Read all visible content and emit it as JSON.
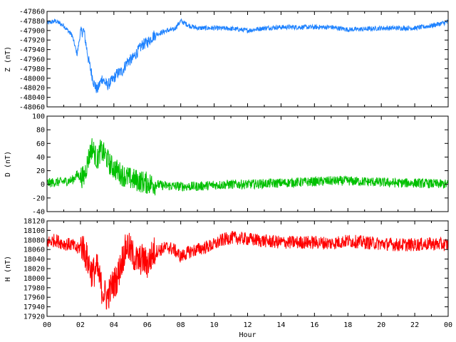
{
  "chart_data": [
    {
      "type": "line",
      "ylabel": "Z (nT)",
      "color": "#1e82ff",
      "ylim": [
        -48060,
        -47860
      ],
      "yticks": [
        -47860,
        -47880,
        -47900,
        -47920,
        -47940,
        -47960,
        -47980,
        -48000,
        -48020,
        -48040,
        -48060
      ],
      "series": [
        {
          "x": [
            0,
            0.5,
            1.0,
            1.5,
            1.8,
            2.0,
            2.2,
            2.5,
            2.8,
            3.0,
            3.3,
            3.6,
            3.9,
            4.2,
            4.5,
            4.8,
            5.1,
            5.4,
            5.7,
            6.0,
            6.4,
            6.8,
            7.2,
            7.6,
            8.0,
            8.5,
            9.0,
            10.0,
            11.0,
            12.0,
            13.0,
            14.0,
            15.0,
            16.0,
            17.0,
            18.0,
            19.0,
            20.0,
            21.0,
            22.0,
            23.0,
            24.0
          ],
          "y": [
            -47885,
            -47880,
            -47890,
            -47910,
            -47950,
            -47905,
            -47900,
            -47965,
            -48010,
            -48025,
            -48000,
            -48015,
            -48005,
            -47990,
            -47985,
            -47965,
            -47960,
            -47945,
            -47930,
            -47925,
            -47910,
            -47905,
            -47900,
            -47898,
            -47880,
            -47890,
            -47895,
            -47895,
            -47896,
            -47900,
            -47895,
            -47893,
            -47893,
            -47893,
            -47893,
            -47898,
            -47897,
            -47895,
            -47895,
            -47895,
            -47890,
            -47882
          ]
        }
      ]
    },
    {
      "type": "line",
      "ylabel": "D (nT)",
      "color": "#00c000",
      "ylim": [
        -40,
        100
      ],
      "yticks": [
        -40,
        -20,
        0,
        20,
        40,
        60,
        80,
        100
      ],
      "series": [
        {
          "x": [
            0,
            0.5,
            1.0,
            1.5,
            1.8,
            2.2,
            2.5,
            2.7,
            3.0,
            3.2,
            3.5,
            3.8,
            4.1,
            4.5,
            5.0,
            5.5,
            6.0,
            6.5,
            7.0,
            8.0,
            9.0,
            10.0,
            11.0,
            12.0,
            13.0,
            14.0,
            15.0,
            16.0,
            17.0,
            18.0,
            19.0,
            20.0,
            21.0,
            22.0,
            23.0,
            24.0
          ],
          "y": [
            2,
            3,
            4,
            6,
            14,
            10,
            40,
            55,
            35,
            50,
            42,
            28,
            22,
            14,
            8,
            5,
            2,
            0,
            -2,
            -3,
            -3,
            -1,
            0,
            0,
            1,
            2,
            3,
            4,
            5,
            5,
            4,
            3,
            2,
            2,
            1,
            0
          ]
        }
      ]
    },
    {
      "type": "line",
      "ylabel": "H (nT)",
      "xlabel": "Hour",
      "color": "#ff0000",
      "ylim": [
        17920,
        18120
      ],
      "yticks": [
        17920,
        17940,
        17960,
        17980,
        18000,
        18020,
        18040,
        18060,
        18080,
        18100,
        18120
      ],
      "xticks": [
        "00",
        "02",
        "04",
        "06",
        "08",
        "10",
        "12",
        "14",
        "16",
        "18",
        "20",
        "22",
        "00"
      ],
      "series": [
        {
          "x": [
            0,
            0.5,
            1.0,
            1.5,
            1.8,
            2.1,
            2.4,
            2.7,
            3.0,
            3.3,
            3.6,
            3.9,
            4.2,
            4.5,
            4.8,
            5.1,
            5.4,
            5.7,
            6.0,
            6.4,
            6.8,
            7.2,
            7.6,
            8.0,
            8.5,
            9.0,
            9.5,
            10.0,
            10.5,
            11.0,
            12.0,
            13.0,
            14.0,
            15.0,
            16.0,
            17.0,
            18.0,
            19.0,
            20.0,
            21.0,
            22.0,
            23.0,
            24.0
          ],
          "y": [
            18075,
            18080,
            18072,
            18070,
            18060,
            18070,
            18040,
            18010,
            18020,
            17975,
            17960,
            17985,
            18000,
            18040,
            18070,
            18050,
            18035,
            18040,
            18030,
            18055,
            18060,
            18065,
            18060,
            18045,
            18055,
            18060,
            18065,
            18070,
            18080,
            18085,
            18082,
            18078,
            18075,
            18075,
            18075,
            18073,
            18078,
            18075,
            18072,
            18070,
            18070,
            18072,
            18070
          ]
        }
      ]
    }
  ]
}
